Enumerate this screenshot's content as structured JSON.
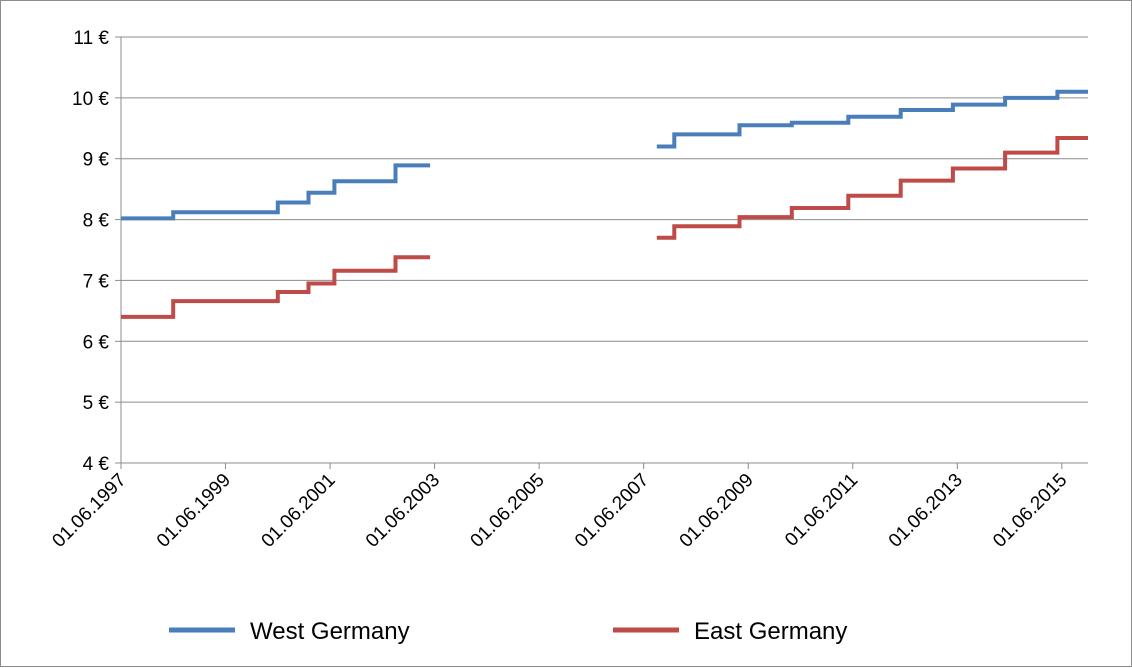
{
  "chart_data": {
    "type": "line",
    "step": true,
    "title": "",
    "xlabel": "",
    "ylabel": "",
    "ylim": [
      4,
      11
    ],
    "yticks": [
      "4 €",
      "5 €",
      "6 €",
      "7 €",
      "8 €",
      "9 €",
      "10 €",
      "11 €"
    ],
    "xlim": [
      "1997-06-01",
      "2015-12-01"
    ],
    "xticks": [
      "01.06.1997",
      "01.06.1999",
      "01.06.2001",
      "01.06.2003",
      "01.06.2005",
      "01.06.2007",
      "01.06.2009",
      "01.06.2011",
      "01.06.2013",
      "01.06.2015"
    ],
    "grid": "horizontal",
    "legend_position": "bottom",
    "series": [
      {
        "name": "West Germany",
        "color": "#4a7ebb",
        "segments": [
          [
            [
              "1997-06-01",
              8.02
            ],
            [
              "1998-06-01",
              8.12
            ],
            [
              "2000-06-01",
              8.28
            ],
            [
              "2001-01-01",
              8.44
            ],
            [
              "2001-07-01",
              8.63
            ],
            [
              "2002-09-01",
              8.89
            ],
            [
              "2003-05-01",
              8.89
            ]
          ],
          [
            [
              "2007-09-01",
              9.2
            ],
            [
              "2008-01-01",
              9.4
            ],
            [
              "2009-04-01",
              9.55
            ],
            [
              "2010-04-01",
              9.59
            ],
            [
              "2011-05-01",
              9.69
            ],
            [
              "2012-05-01",
              9.8
            ],
            [
              "2013-05-01",
              9.89
            ],
            [
              "2014-05-01",
              10.0
            ],
            [
              "2015-05-01",
              10.1
            ],
            [
              "2015-12-01",
              10.1
            ]
          ]
        ]
      },
      {
        "name": "East Germany",
        "color": "#be4b48",
        "segments": [
          [
            [
              "1997-06-01",
              6.4
            ],
            [
              "1998-06-01",
              6.66
            ],
            [
              "2000-06-01",
              6.81
            ],
            [
              "2001-01-01",
              6.95
            ],
            [
              "2001-07-01",
              7.16
            ],
            [
              "2002-09-01",
              7.38
            ],
            [
              "2003-05-01",
              7.38
            ]
          ],
          [
            [
              "2007-09-01",
              7.7
            ],
            [
              "2008-01-01",
              7.89
            ],
            [
              "2009-04-01",
              8.04
            ],
            [
              "2010-04-01",
              8.19
            ],
            [
              "2011-05-01",
              8.39
            ],
            [
              "2012-05-01",
              8.64
            ],
            [
              "2013-05-01",
              8.84
            ],
            [
              "2014-05-01",
              9.1
            ],
            [
              "2015-05-01",
              9.34
            ],
            [
              "2015-12-01",
              9.34
            ]
          ]
        ]
      }
    ]
  }
}
